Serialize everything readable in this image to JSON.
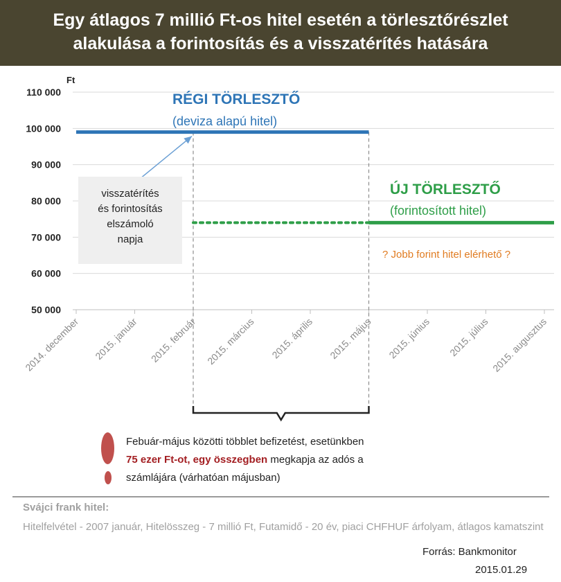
{
  "header": {
    "line1": "Egy átlagos 7 millió Ft-os hitel esetén a törlesztőrészlet",
    "line2": "alakulása a forintosítás és a visszatérítés hatására"
  },
  "chart_data": {
    "type": "line",
    "ylabel": "Ft",
    "ylim": [
      50000,
      110000
    ],
    "yticks": [
      50000,
      60000,
      70000,
      80000,
      90000,
      100000,
      110000
    ],
    "ytick_labels": [
      "50 000",
      "60 000",
      "70 000",
      "80 000",
      "90 000",
      "100 000",
      "110 000"
    ],
    "categories": [
      "2014. december",
      "2015. január",
      "2015. február",
      "2015. március",
      "2015. április",
      "2015. május",
      "2015. június",
      "2015. július",
      "2015. augusztus"
    ],
    "grid": "horizontal",
    "series": [
      {
        "name": "RÉGI TÖRLESZTŐ",
        "style": "solid",
        "color": "#2e75b6",
        "x": [
          "2014. december",
          "2015. január",
          "2015. február",
          "2015. március",
          "2015. április",
          "2015. május"
        ],
        "values": [
          99000,
          99000,
          99000,
          99000,
          99000,
          99000
        ]
      },
      {
        "name": "ÚJ TÖRLESZTŐ",
        "style": "dotted",
        "color": "#2e9e48",
        "x": [
          "2015. február",
          "2015. március",
          "2015. április",
          "2015. május"
        ],
        "values": [
          74000,
          74000,
          74000,
          74000
        ]
      },
      {
        "name": "ÚJ TÖRLESZTŐ",
        "style": "solid",
        "color": "#2e9e48",
        "x": [
          "2015. május",
          "2015. június",
          "2015. július",
          "2015. augusztus"
        ],
        "values": [
          74000,
          74000,
          74000,
          74000
        ]
      }
    ],
    "markers": [
      "2015. február",
      "2015. május"
    ]
  },
  "labels": {
    "old_title": "RÉGI TÖRLESZTŐ",
    "old_sub": "(deviza alapú hitel)",
    "new_title": "ÚJ TÖRLESZTŐ",
    "new_sub": "(forintosított hitel)",
    "better_note": "? Jobb forint hitel elérhető ?",
    "note_lines": [
      "visszatérítés",
      "és forintosítás",
      "elszámoló",
      "napja"
    ]
  },
  "bottom_note": {
    "line1": "Febuár-május közötti többlet befizetést, esetünkben",
    "line2_highlight": "75 ezer Ft-ot, egy összegben",
    "line2_rest": " megkapja az adós a",
    "line3": "számlájára (várhatóan májusban)"
  },
  "info": {
    "title": "Svájci frank hitel:",
    "body": "Hitelfelvétel - 2007 január, Hitelösszeg - 7 millió Ft, Futamidő - 20 év, piaci CHFHUF árfolyam, átlagos kamatszint"
  },
  "source": "Forrás:  Bankmonitor",
  "date": "2015.01.29",
  "colors": {
    "header_bg": "#4a4530",
    "old_series": "#2e75b6",
    "new_series": "#2e9e48",
    "note_orange": "#e07b20",
    "highlight_red": "#a31e22",
    "dot": "#c0504d"
  }
}
